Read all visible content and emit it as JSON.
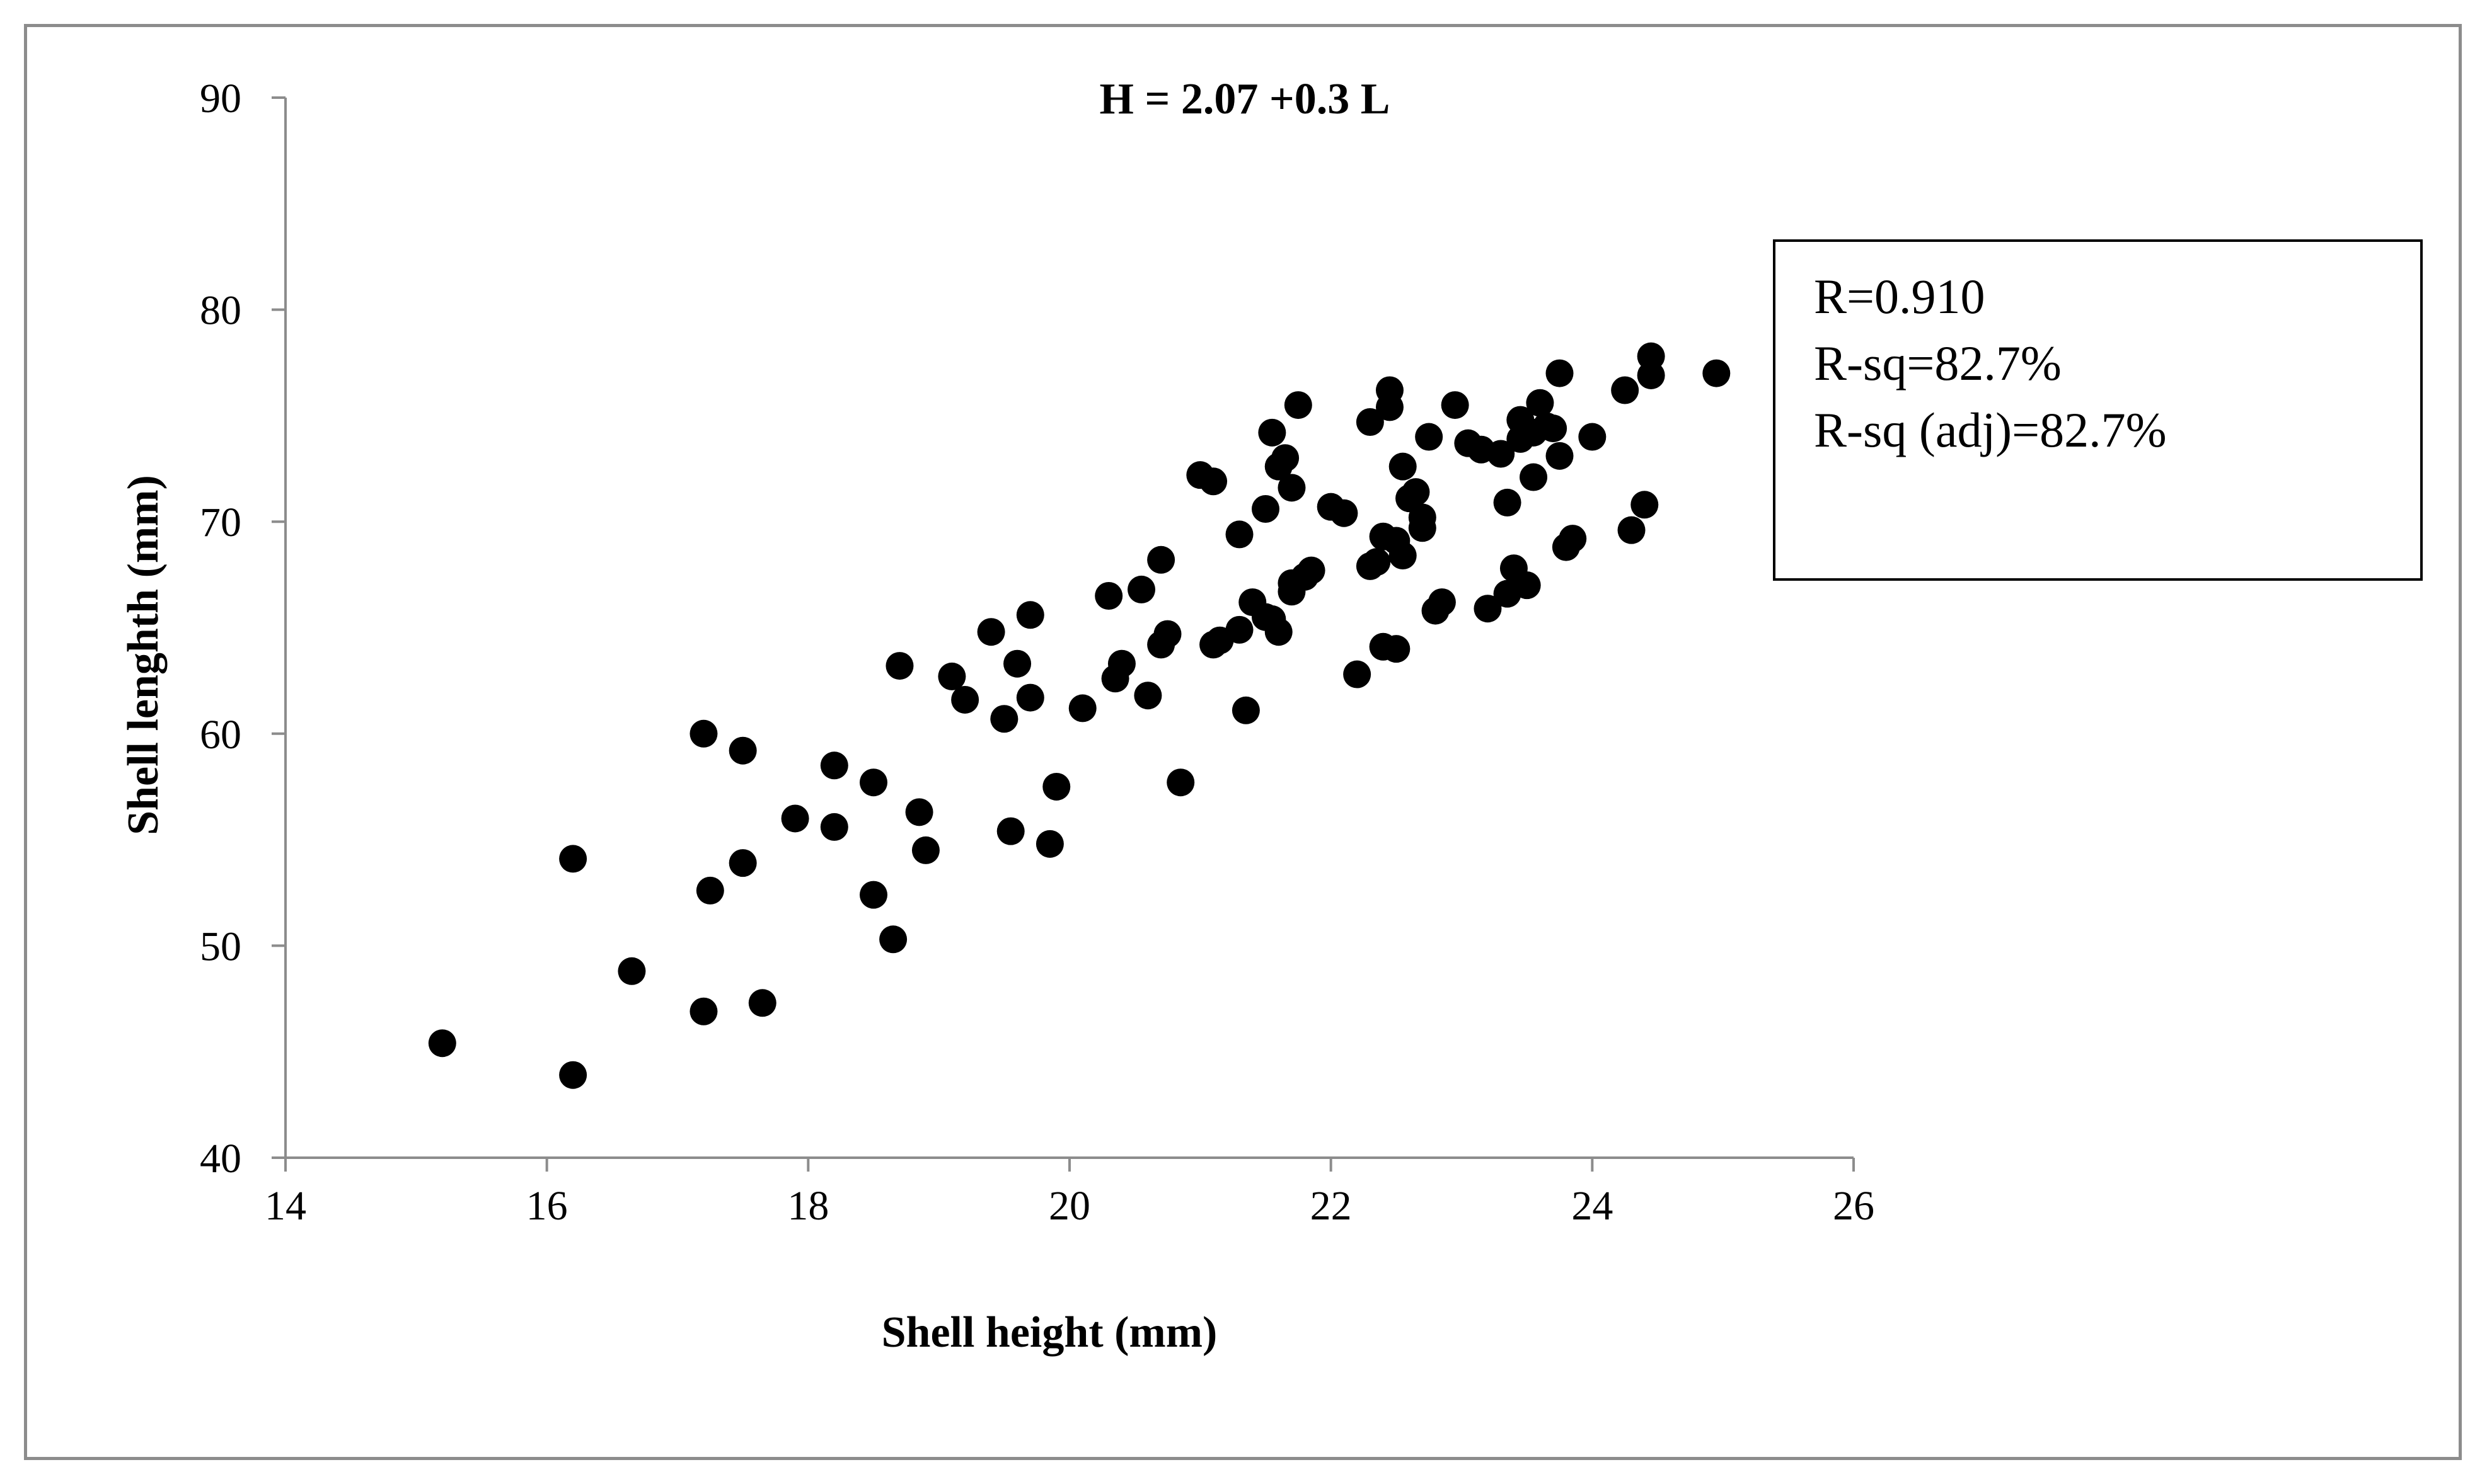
{
  "chart_data": {
    "type": "scatter",
    "title": "H = 2.07 +0.3 L",
    "xlabel": "Shell  height (mm)",
    "ylabel": "Shell lenghth (mm)",
    "xlim": [
      14,
      26
    ],
    "ylim": [
      40,
      90
    ],
    "xticks": [
      14,
      16,
      18,
      20,
      22,
      24,
      26
    ],
    "yticks": [
      40,
      50,
      60,
      70,
      80,
      90
    ],
    "grid": false,
    "marker_color": "#000000",
    "stats_box": [
      "R=0.910",
      "R-sq=82.7%",
      "R-sq (adj)=82.7%"
    ],
    "points": [
      [
        15.2,
        45.4
      ],
      [
        16.2,
        43.9
      ],
      [
        16.2,
        54.1
      ],
      [
        16.65,
        48.8
      ],
      [
        17.2,
        60.0
      ],
      [
        17.2,
        46.9
      ],
      [
        17.25,
        52.6
      ],
      [
        17.5,
        59.2
      ],
      [
        17.5,
        53.9
      ],
      [
        17.65,
        47.3
      ],
      [
        17.9,
        56.0
      ],
      [
        18.2,
        58.5
      ],
      [
        18.2,
        55.6
      ],
      [
        18.5,
        57.7
      ],
      [
        18.5,
        52.4
      ],
      [
        18.65,
        50.3
      ],
      [
        18.7,
        63.2
      ],
      [
        18.85,
        56.3
      ],
      [
        18.9,
        54.5
      ],
      [
        19.1,
        62.7
      ],
      [
        19.2,
        61.6
      ],
      [
        19.4,
        64.8
      ],
      [
        19.5,
        60.7
      ],
      [
        19.55,
        55.4
      ],
      [
        19.6,
        63.3
      ],
      [
        19.7,
        65.6
      ],
      [
        19.7,
        61.7
      ],
      [
        19.85,
        54.8
      ],
      [
        19.9,
        57.5
      ],
      [
        20.1,
        61.2
      ],
      [
        20.3,
        66.5
      ],
      [
        20.35,
        62.6
      ],
      [
        20.4,
        63.3
      ],
      [
        20.55,
        66.8
      ],
      [
        20.6,
        61.8
      ],
      [
        20.7,
        68.2
      ],
      [
        20.7,
        64.2
      ],
      [
        20.75,
        64.7
      ],
      [
        20.85,
        57.7
      ],
      [
        21.0,
        72.2
      ],
      [
        21.1,
        64.2
      ],
      [
        21.1,
        71.9
      ],
      [
        21.15,
        64.4
      ],
      [
        21.3,
        69.4
      ],
      [
        21.3,
        64.9
      ],
      [
        21.35,
        61.1
      ],
      [
        21.4,
        66.2
      ],
      [
        21.5,
        70.6
      ],
      [
        21.5,
        65.5
      ],
      [
        21.55,
        74.2
      ],
      [
        21.55,
        65.4
      ],
      [
        21.6,
        72.6
      ],
      [
        21.6,
        64.8
      ],
      [
        21.65,
        73.0
      ],
      [
        21.7,
        71.6
      ],
      [
        21.7,
        66.7
      ],
      [
        21.7,
        67.1
      ],
      [
        21.75,
        75.5
      ],
      [
        21.8,
        67.4
      ],
      [
        21.85,
        67.7
      ],
      [
        22.0,
        70.7
      ],
      [
        22.1,
        70.4
      ],
      [
        22.2,
        62.8
      ],
      [
        22.3,
        74.7
      ],
      [
        22.3,
        67.9
      ],
      [
        22.35,
        68.1
      ],
      [
        22.4,
        64.1
      ],
      [
        22.4,
        69.3
      ],
      [
        22.45,
        76.2
      ],
      [
        22.45,
        75.4
      ],
      [
        22.5,
        64.0
      ],
      [
        22.5,
        69.1
      ],
      [
        22.55,
        72.6
      ],
      [
        22.55,
        68.4
      ],
      [
        22.6,
        71.1
      ],
      [
        22.65,
        71.4
      ],
      [
        22.7,
        70.2
      ],
      [
        22.7,
        69.7
      ],
      [
        22.75,
        74.0
      ],
      [
        22.8,
        65.8
      ],
      [
        22.85,
        66.2
      ],
      [
        22.95,
        75.5
      ],
      [
        23.05,
        73.7
      ],
      [
        23.15,
        73.4
      ],
      [
        23.2,
        65.9
      ],
      [
        23.3,
        73.2
      ],
      [
        23.35,
        66.6
      ],
      [
        23.35,
        70.9
      ],
      [
        23.4,
        67.8
      ],
      [
        23.45,
        74.8
      ],
      [
        23.45,
        73.9
      ],
      [
        23.5,
        67.0
      ],
      [
        23.55,
        72.1
      ],
      [
        23.55,
        74.2
      ],
      [
        23.6,
        75.6
      ],
      [
        23.65,
        74.5
      ],
      [
        23.7,
        74.4
      ],
      [
        23.75,
        73.1
      ],
      [
        23.75,
        77.0
      ],
      [
        23.8,
        68.8
      ],
      [
        23.85,
        69.2
      ],
      [
        24.0,
        74.0
      ],
      [
        24.25,
        76.2
      ],
      [
        24.3,
        69.6
      ],
      [
        24.4,
        70.8
      ],
      [
        24.45,
        76.9
      ],
      [
        24.45,
        77.8
      ],
      [
        24.95,
        77.0
      ]
    ]
  }
}
